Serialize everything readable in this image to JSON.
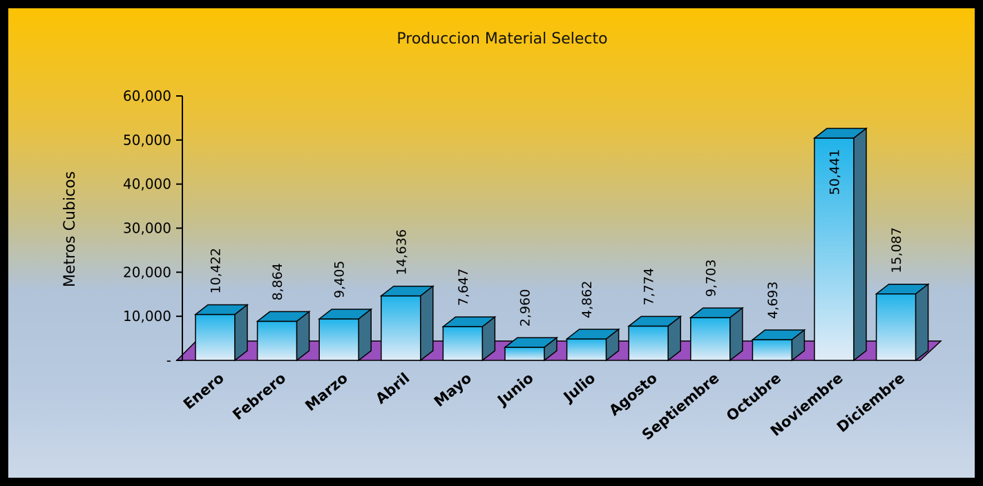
{
  "chart_data": {
    "type": "bar",
    "title": "Produccion Material Selecto",
    "ylabel": "Metros Cubicos",
    "xlabel": "",
    "ylim": [
      0,
      60000
    ],
    "yticks": [
      0,
      10000,
      20000,
      30000,
      40000,
      50000,
      60000
    ],
    "ytick_labels": [
      "-",
      "10,000",
      "20,000",
      "30,000",
      "40,000",
      "50,000",
      "60,000"
    ],
    "categories": [
      "Enero",
      "Febrero",
      "Marzo",
      "Abril",
      "Mayo",
      "Junio",
      "Julio",
      "Agosto",
      "Septiembre",
      "Octubre",
      "Noviembre",
      "Diciembre"
    ],
    "values": [
      10422,
      8864,
      9405,
      14636,
      7647,
      2960,
      4862,
      7774,
      9703,
      4693,
      50441,
      15087
    ],
    "value_labels": [
      "10,422",
      "8,864",
      "9,405",
      "14,636",
      "7,647",
      "2,960",
      "4,862",
      "7,774",
      "9,703",
      "4,693",
      "50,441",
      "15,087"
    ],
    "grid": false,
    "legend": "none",
    "colors": {
      "bar_front_top": "#1fb3ea",
      "bar_front_bottom": "#e0ecf7",
      "bar_top": "#0f93c6",
      "bar_side": "#3a6f8a",
      "floor": "#9a4fbe"
    }
  }
}
